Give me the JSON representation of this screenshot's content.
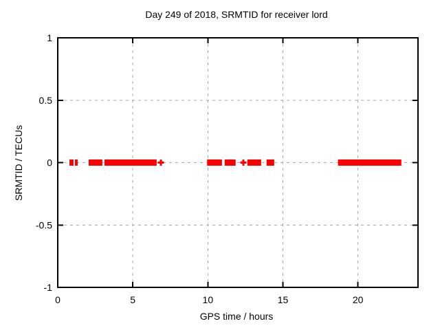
{
  "window": {
    "background": "#ffffff"
  },
  "chart_data": {
    "type": "scatter",
    "title": "Day 249 of 2018, SRMTID for receiver lord",
    "xlabel": "GPS time / hours",
    "ylabel": "SRMTID / TECUs",
    "xlim": [
      0,
      24
    ],
    "ylim": [
      -1,
      1
    ],
    "x_ticks": [
      {
        "value": 0,
        "label": "0"
      },
      {
        "value": 5,
        "label": "5"
      },
      {
        "value": 10,
        "label": "10"
      },
      {
        "value": 15,
        "label": "15"
      },
      {
        "value": 20,
        "label": "20"
      }
    ],
    "y_ticks": [
      {
        "value": 1,
        "label": "1"
      },
      {
        "value": 0.5,
        "label": "0.5"
      },
      {
        "value": 0,
        "label": "0"
      },
      {
        "value": -0.5,
        "label": "-0.5"
      },
      {
        "value": -1,
        "label": "-1"
      }
    ],
    "grid": true,
    "legend": "none",
    "series": [
      {
        "name": "SRMTID",
        "marker": "plus",
        "color": "#ff0000",
        "y_value": 0,
        "segments_hours": [
          [
            0.78,
            1.05
          ],
          [
            1.14,
            1.33
          ],
          [
            2.06,
            2.97
          ],
          [
            3.11,
            6.59
          ],
          [
            9.95,
            10.94
          ],
          [
            11.12,
            11.85
          ],
          [
            12.63,
            13.55
          ],
          [
            13.91,
            14.42
          ],
          [
            18.67,
            22.89
          ]
        ],
        "isolated_points_hours": [
          6.87,
          12.36
        ]
      }
    ],
    "colors": {
      "data": "#ff0000",
      "grid": "#a9a9a9",
      "axis": "#000000",
      "text": "#000000"
    },
    "layout": {
      "plot_left": 84,
      "plot_top": 55,
      "plot_right": 608,
      "plot_bottom": 418
    }
  }
}
